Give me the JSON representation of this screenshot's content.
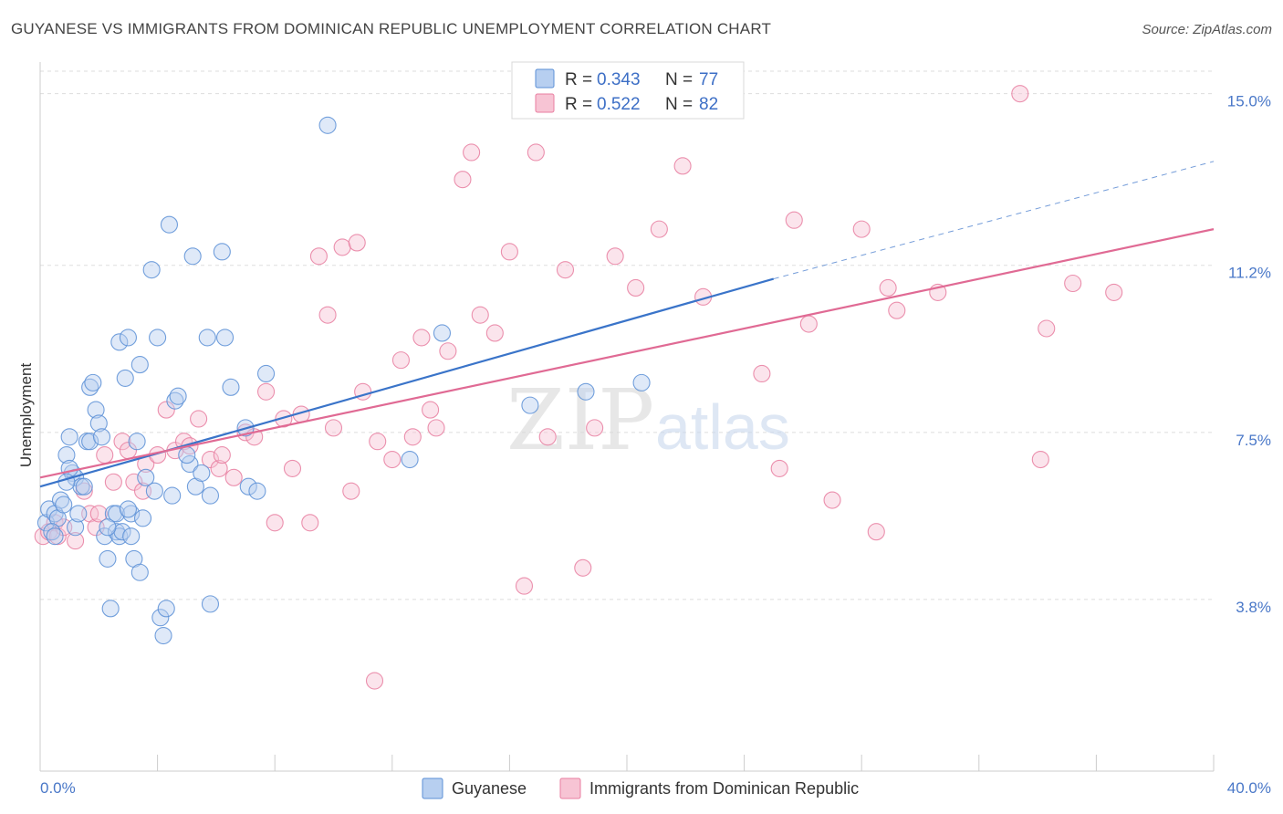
{
  "header": {
    "title": "GUYANESE VS IMMIGRANTS FROM DOMINICAN REPUBLIC UNEMPLOYMENT CORRELATION CHART",
    "source": "Source: ZipAtlas.com"
  },
  "watermark": {
    "zip": "ZIP",
    "atlas": "atlas"
  },
  "legend": {
    "r_label": "R =",
    "n_label": "N =",
    "rows": [
      {
        "r": "0.343",
        "n": "77",
        "color": "#5b8fd6",
        "fill": "#b7cff0"
      },
      {
        "r": "0.522",
        "n": "82",
        "color": "#e87ea0",
        "fill": "#f7c4d4"
      }
    ]
  },
  "colors": {
    "blue": "#3a74c9",
    "pink": "#e06a94",
    "grid": "#dddddd",
    "tick_text": "#4a78c8"
  },
  "chart_data": {
    "type": "scatter",
    "title": "GUYANESE VS IMMIGRANTS FROM DOMINICAN REPUBLIC UNEMPLOYMENT CORRELATION CHART",
    "ylabel": "Unemployment",
    "xlabel": "",
    "xlim": [
      0,
      40
    ],
    "ylim": [
      0,
      15.7
    ],
    "x_tick_labels": [
      "0.0%",
      "40.0%"
    ],
    "y_ticks": [
      3.8,
      7.5,
      11.2,
      15.0
    ],
    "y_tick_labels": [
      "3.8%",
      "7.5%",
      "11.2%",
      "15.0%"
    ],
    "grid": "horizontal dashed",
    "legend_placement": "top-center",
    "series": [
      {
        "name": "Guyanese",
        "color": "#5b8fd6",
        "trend": {
          "x0": 0,
          "y0": 6.3,
          "x1": 25,
          "y1": 10.9,
          "dash_to_x": 40,
          "dash_to_y": 13.5
        },
        "points": [
          [
            0.2,
            5.5
          ],
          [
            0.3,
            5.8
          ],
          [
            0.5,
            5.7
          ],
          [
            0.6,
            5.6
          ],
          [
            0.4,
            5.3
          ],
          [
            0.7,
            6.0
          ],
          [
            0.8,
            5.9
          ],
          [
            0.9,
            7.0
          ],
          [
            1.0,
            7.4
          ],
          [
            1.1,
            6.6
          ],
          [
            1.2,
            6.5
          ],
          [
            1.2,
            5.4
          ],
          [
            1.3,
            5.7
          ],
          [
            1.4,
            6.3
          ],
          [
            1.5,
            6.3
          ],
          [
            1.6,
            7.3
          ],
          [
            1.7,
            7.3
          ],
          [
            1.7,
            8.5
          ],
          [
            1.8,
            8.6
          ],
          [
            1.9,
            8.0
          ],
          [
            2.0,
            7.7
          ],
          [
            2.1,
            7.4
          ],
          [
            2.2,
            5.2
          ],
          [
            2.3,
            4.7
          ],
          [
            2.4,
            3.6
          ],
          [
            2.5,
            5.7
          ],
          [
            2.6,
            5.3
          ],
          [
            2.6,
            5.7
          ],
          [
            2.7,
            5.2
          ],
          [
            2.7,
            9.5
          ],
          [
            2.8,
            5.3
          ],
          [
            2.9,
            8.7
          ],
          [
            3.0,
            9.6
          ],
          [
            3.1,
            5.2
          ],
          [
            3.1,
            5.7
          ],
          [
            3.2,
            4.7
          ],
          [
            3.3,
            7.3
          ],
          [
            3.4,
            4.4
          ],
          [
            3.4,
            9.0
          ],
          [
            3.5,
            5.6
          ],
          [
            3.6,
            6.5
          ],
          [
            3.8,
            11.1
          ],
          [
            3.9,
            6.2
          ],
          [
            4.0,
            9.6
          ],
          [
            4.1,
            3.4
          ],
          [
            4.2,
            3.0
          ],
          [
            4.3,
            3.6
          ],
          [
            4.4,
            12.1
          ],
          [
            4.5,
            6.1
          ],
          [
            4.6,
            8.2
          ],
          [
            4.7,
            8.3
          ],
          [
            5.1,
            6.8
          ],
          [
            5.2,
            11.4
          ],
          [
            5.3,
            6.3
          ],
          [
            5.5,
            6.6
          ],
          [
            5.7,
            9.6
          ],
          [
            5.8,
            6.1
          ],
          [
            5.8,
            3.7
          ],
          [
            6.2,
            11.5
          ],
          [
            6.3,
            9.6
          ],
          [
            6.5,
            8.5
          ],
          [
            7.1,
            6.3
          ],
          [
            7.4,
            6.2
          ],
          [
            7.7,
            8.8
          ],
          [
            9.8,
            14.3
          ],
          [
            12.6,
            6.9
          ],
          [
            13.7,
            9.7
          ],
          [
            16.7,
            8.1
          ],
          [
            18.6,
            8.4
          ],
          [
            20.5,
            8.6
          ],
          [
            1.0,
            6.7
          ],
          [
            2.3,
            5.4
          ],
          [
            0.5,
            5.2
          ],
          [
            3.0,
            5.8
          ],
          [
            5.0,
            7.0
          ],
          [
            7.0,
            7.6
          ],
          [
            0.9,
            6.4
          ]
        ]
      },
      {
        "name": "Immigrants from Dominican Republic",
        "color": "#e87ea0",
        "trend": {
          "x0": 0,
          "y0": 6.5,
          "x1": 40,
          "y1": 12.0
        },
        "points": [
          [
            0.1,
            5.2
          ],
          [
            0.3,
            5.3
          ],
          [
            0.5,
            5.5
          ],
          [
            0.6,
            5.2
          ],
          [
            0.8,
            5.4
          ],
          [
            1.2,
            5.1
          ],
          [
            1.5,
            6.2
          ],
          [
            1.7,
            5.7
          ],
          [
            1.9,
            5.4
          ],
          [
            2.0,
            5.7
          ],
          [
            2.2,
            7.0
          ],
          [
            2.5,
            6.4
          ],
          [
            2.8,
            7.3
          ],
          [
            3.0,
            7.1
          ],
          [
            3.2,
            6.4
          ],
          [
            3.5,
            6.2
          ],
          [
            3.6,
            6.8
          ],
          [
            4.0,
            7.0
          ],
          [
            4.3,
            8.0
          ],
          [
            4.6,
            7.1
          ],
          [
            4.9,
            7.3
          ],
          [
            5.1,
            7.2
          ],
          [
            5.4,
            7.8
          ],
          [
            5.8,
            6.9
          ],
          [
            6.1,
            6.7
          ],
          [
            6.2,
            7.0
          ],
          [
            6.6,
            6.5
          ],
          [
            7.0,
            7.5
          ],
          [
            7.3,
            7.4
          ],
          [
            7.7,
            8.4
          ],
          [
            8.0,
            5.5
          ],
          [
            8.3,
            7.8
          ],
          [
            8.6,
            6.7
          ],
          [
            8.9,
            7.9
          ],
          [
            9.2,
            5.5
          ],
          [
            9.5,
            11.4
          ],
          [
            9.8,
            10.1
          ],
          [
            10.0,
            7.6
          ],
          [
            10.3,
            11.6
          ],
          [
            10.6,
            6.2
          ],
          [
            10.8,
            11.7
          ],
          [
            11.0,
            8.4
          ],
          [
            11.5,
            7.3
          ],
          [
            12.0,
            6.9
          ],
          [
            12.3,
            9.1
          ],
          [
            12.7,
            7.4
          ],
          [
            13.0,
            9.6
          ],
          [
            13.3,
            8.0
          ],
          [
            13.5,
            7.6
          ],
          [
            13.9,
            9.3
          ],
          [
            14.4,
            13.1
          ],
          [
            14.7,
            13.7
          ],
          [
            15.0,
            10.1
          ],
          [
            15.5,
            9.7
          ],
          [
            16.0,
            11.5
          ],
          [
            16.5,
            4.1
          ],
          [
            16.9,
            13.7
          ],
          [
            17.3,
            7.4
          ],
          [
            17.9,
            11.1
          ],
          [
            18.5,
            4.5
          ],
          [
            18.9,
            7.6
          ],
          [
            19.6,
            11.4
          ],
          [
            20.3,
            10.7
          ],
          [
            21.1,
            12.0
          ],
          [
            21.9,
            13.4
          ],
          [
            22.6,
            10.5
          ],
          [
            24.6,
            8.8
          ],
          [
            25.2,
            6.7
          ],
          [
            25.7,
            12.2
          ],
          [
            26.2,
            9.9
          ],
          [
            27.0,
            6.0
          ],
          [
            28.0,
            12.0
          ],
          [
            28.5,
            5.3
          ],
          [
            28.9,
            10.7
          ],
          [
            29.2,
            10.2
          ],
          [
            30.6,
            10.6
          ],
          [
            33.4,
            15.0
          ],
          [
            34.1,
            6.9
          ],
          [
            34.3,
            9.8
          ],
          [
            35.2,
            10.8
          ],
          [
            36.6,
            10.6
          ],
          [
            11.4,
            2.0
          ]
        ]
      }
    ]
  }
}
